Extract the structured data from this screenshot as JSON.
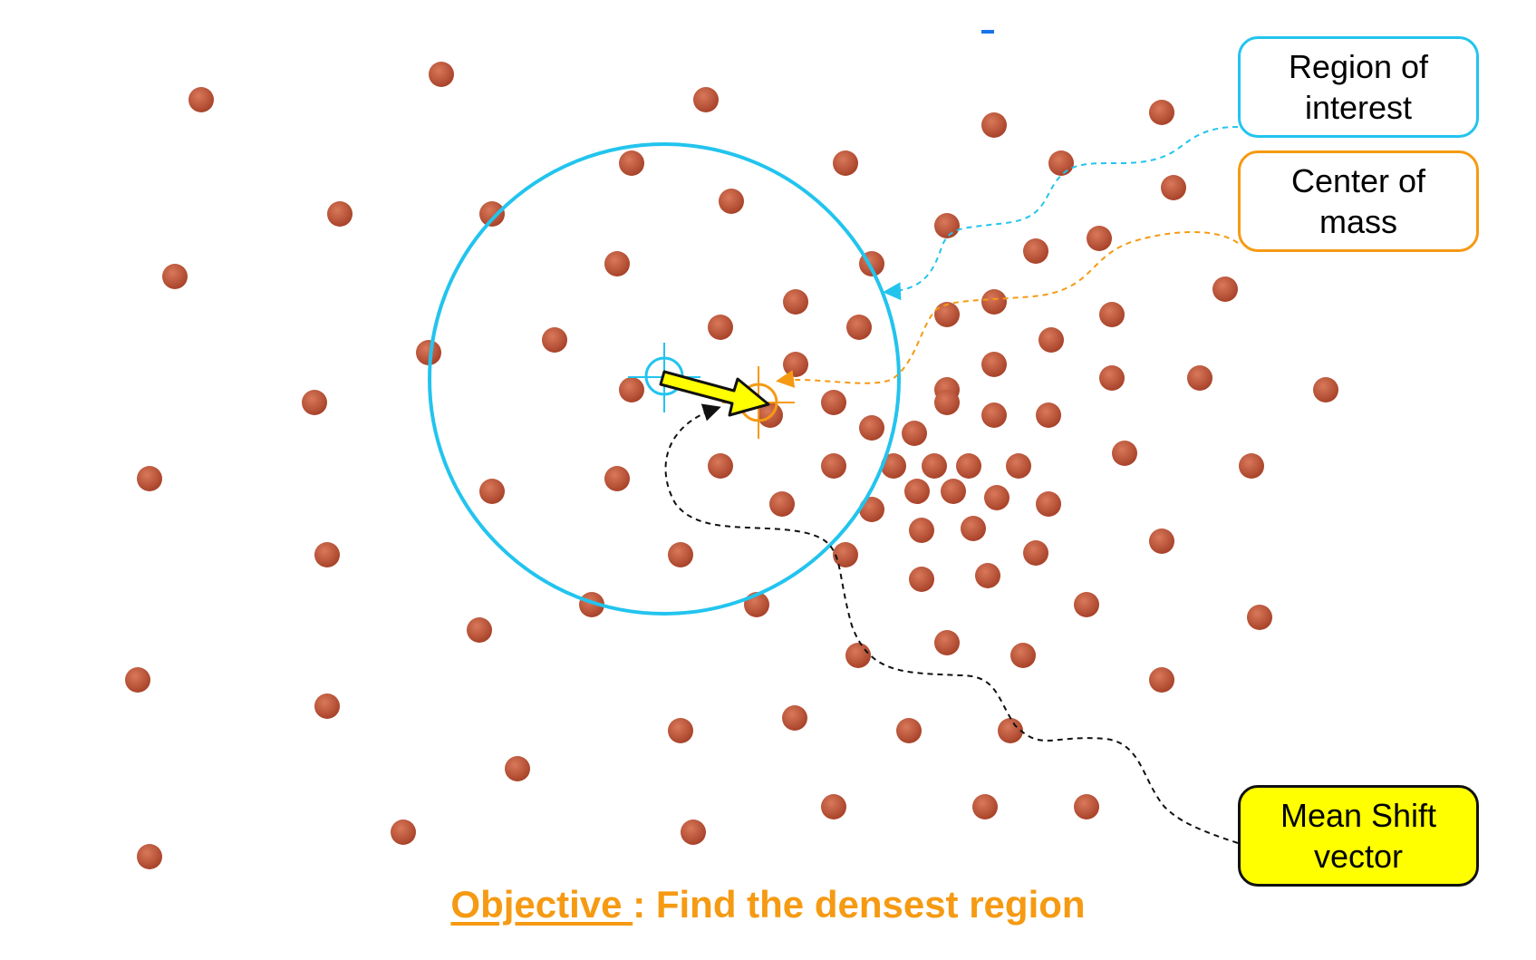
{
  "labels": {
    "region_of_interest": "Region of\ninterest",
    "center_of_mass": "Center of\nmass",
    "mean_shift_vector": "Mean Shift\nvector"
  },
  "objective": {
    "underlined": "Objective ",
    "rest": ": Find the densest region"
  },
  "colors": {
    "point": "#c0583a",
    "roi": "#22c4ee",
    "center_of_mass": "#f59a12",
    "vector": "#ffff00"
  }
}
